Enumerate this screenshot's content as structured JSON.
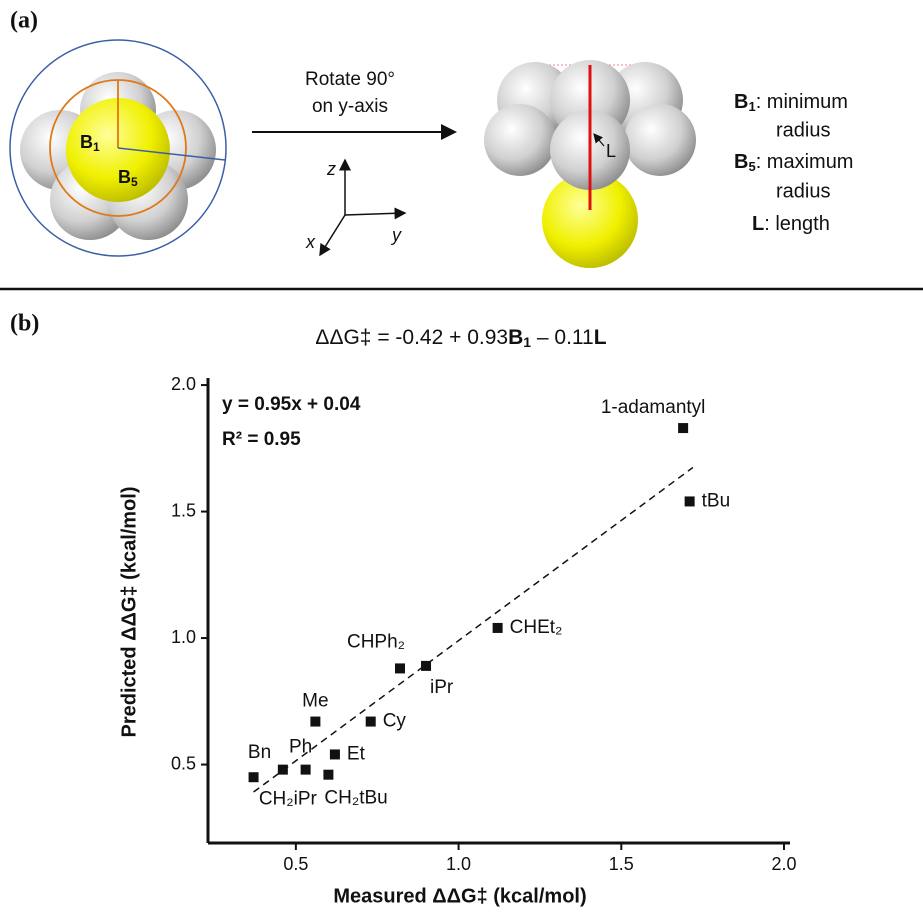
{
  "panel_a": {
    "label": "(a)",
    "arrow_text": [
      "Rotate 90°",
      "on y-axis"
    ],
    "axes": [
      "z",
      "y",
      "x"
    ],
    "markers": {
      "b1": [
        "B",
        "1"
      ],
      "b5": [
        "B",
        "5"
      ],
      "l": "L"
    },
    "legend": [
      {
        "symbol": [
          "B",
          "1"
        ],
        "text": [
          ": minimum",
          "radius"
        ]
      },
      {
        "symbol": [
          "B",
          "5"
        ],
        "text": [
          ": maximum",
          "radius"
        ]
      },
      {
        "symbol": [
          "L"
        ],
        "text": [
          ": length"
        ]
      }
    ]
  },
  "panel_b_label": "(b)",
  "chart_data": {
    "type": "scatter",
    "title": [
      "ΔΔG‡ = -0.42 + 0.93",
      "B",
      "1",
      " – 0.11",
      "L"
    ],
    "x_label": "Measured ΔΔG‡ (kcal/mol)",
    "y_label": "Predicted ΔΔG‡ (kcal/mol)",
    "annotations": [
      "y = 0.95x + 0.04",
      "R² = 0.95"
    ],
    "point_labels": [
      "1-adamantyl",
      "tBu",
      "CHEt₂",
      "CHPh₂",
      "iPr",
      "Me",
      "Cy",
      "Et",
      "Bn",
      "Ph",
      "CH₂iPr",
      "CH₂tBu"
    ],
    "x": [
      1.69,
      1.71,
      1.12,
      0.82,
      0.9,
      0.56,
      0.73,
      0.62,
      0.37,
      0.53,
      0.46,
      0.6
    ],
    "values": [
      1.83,
      1.54,
      1.04,
      0.88,
      0.89,
      0.67,
      0.67,
      0.54,
      0.45,
      0.48,
      0.48,
      0.46
    ],
    "color": "#111111",
    "fit": {
      "slope": 0.95,
      "intercept": 0.04,
      "x_range": [
        0.37,
        1.72
      ]
    },
    "xlim": [
      0.23,
      2.0
    ],
    "ylim": [
      0.19,
      2.02
    ],
    "xticks": [
      0.5,
      {
        "value": 1.0,
        "label": "1.0"
      },
      1.5,
      {
        "value": 2.0,
        "label": "2.0"
      }
    ],
    "yticks": [
      0.5,
      {
        "value": 1.0,
        "label": "1.0"
      },
      1.5,
      {
        "value": 2.0,
        "label": "2.0"
      }
    ]
  }
}
